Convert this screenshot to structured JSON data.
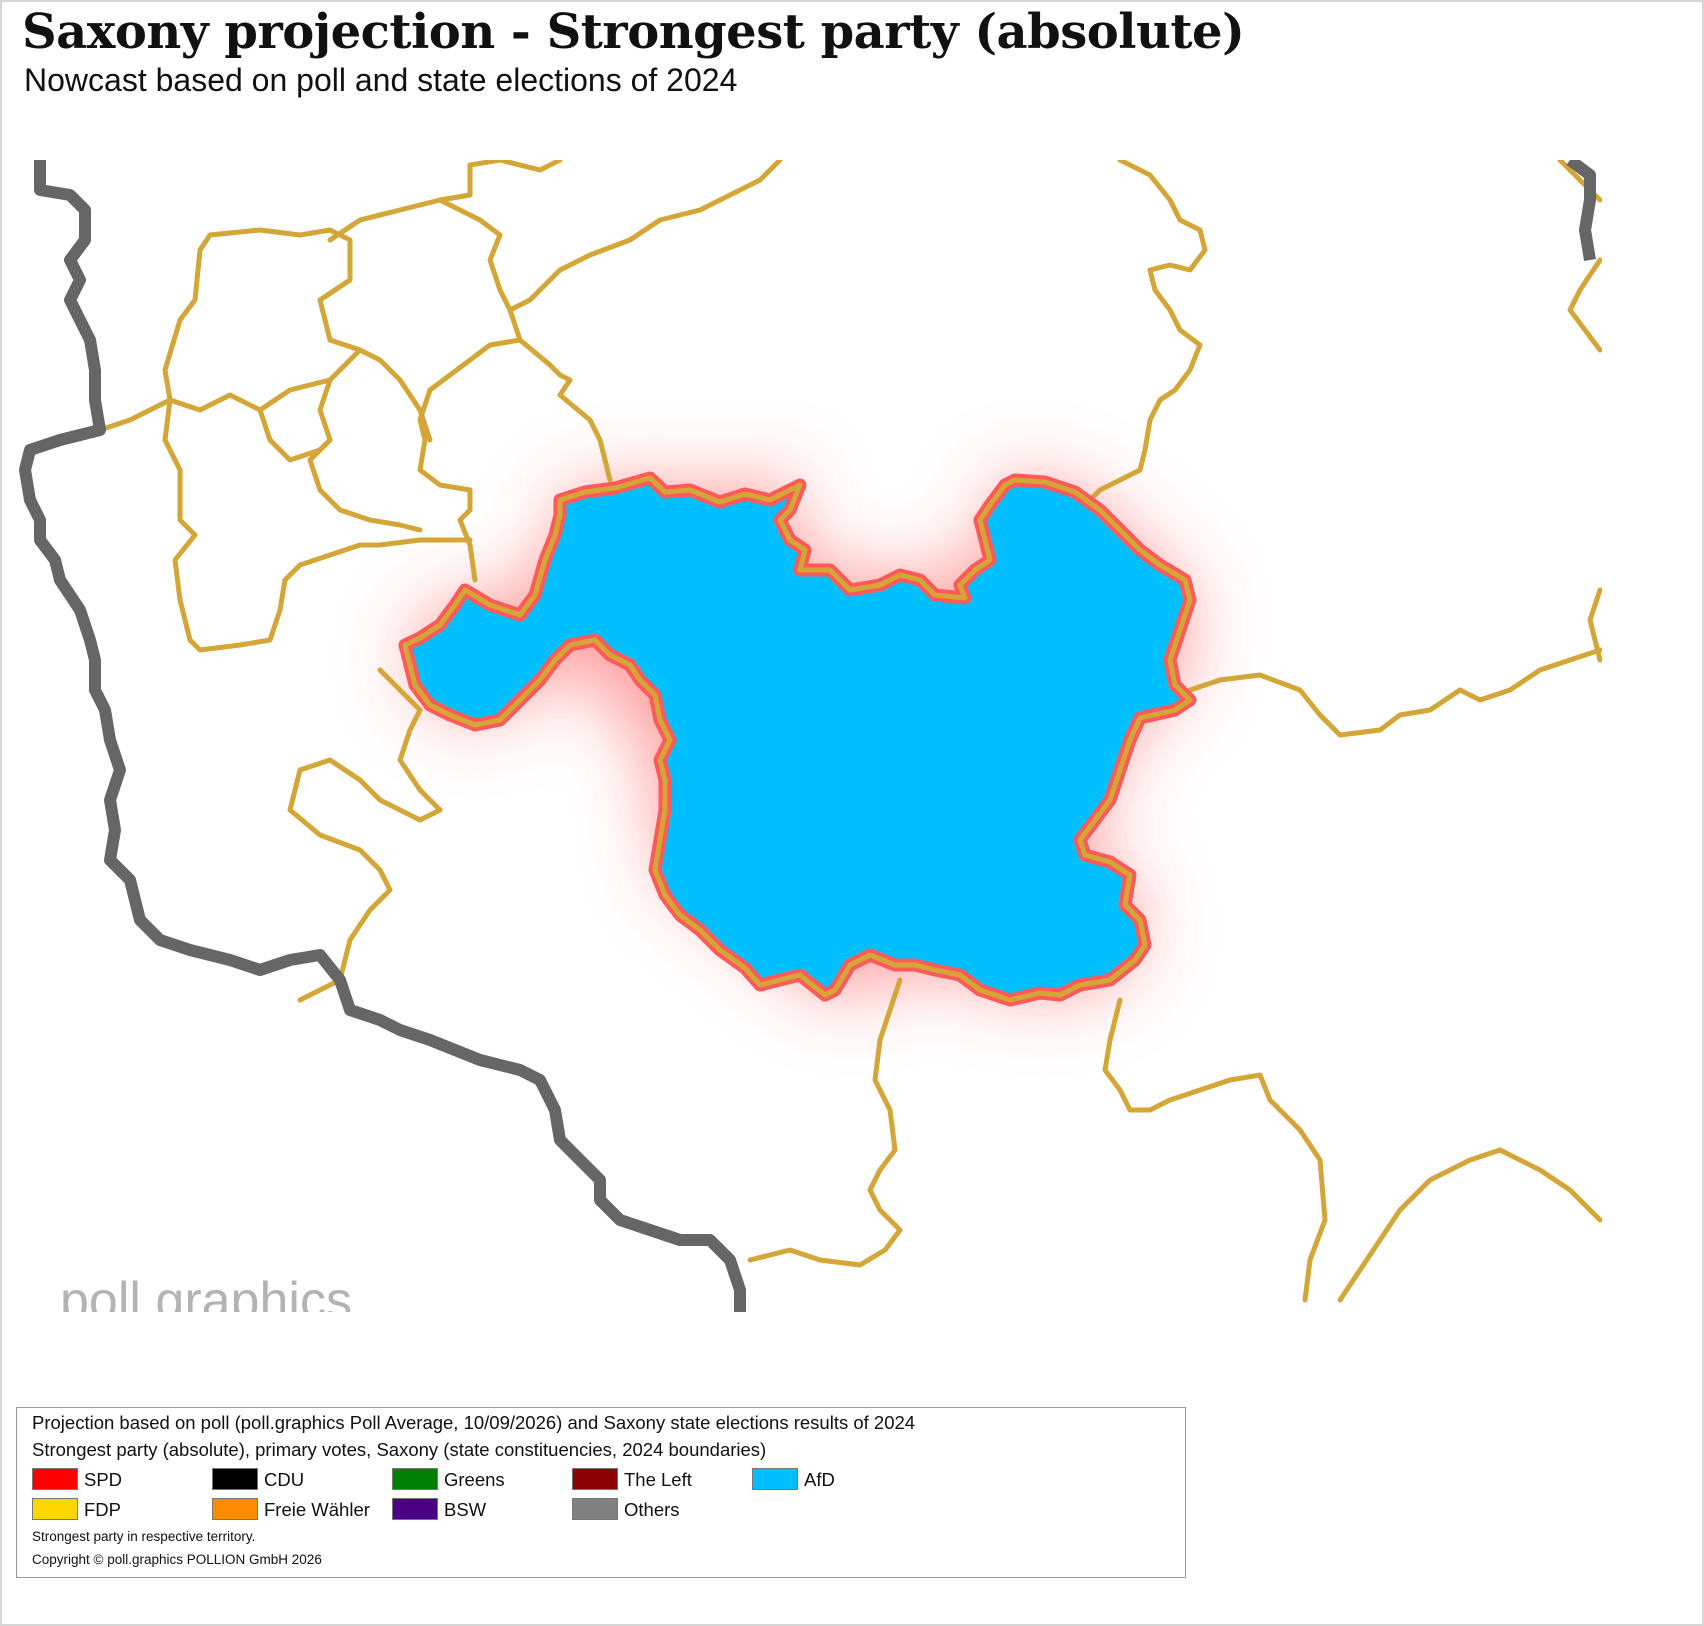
{
  "header": {
    "title": "Saxony projection - Strongest party (absolute)",
    "subtitle": "Nowcast based on poll and state elections of 2024"
  },
  "map": {
    "watermark": "poll.graphics",
    "highlighted_constituency_party": "AfD",
    "colors": {
      "highlight_fill": "#00bfff",
      "constituency_border": "#d4a537",
      "highlight_glow": "#ff5a5a",
      "state_border": "#666666"
    }
  },
  "legend": {
    "line1": "Projection based on poll (poll.graphics Poll Average, 10/09/2026) and Saxony state elections results of 2024",
    "line2": "Strongest party (absolute), primary votes, Saxony (state constituencies, 2024 boundaries)",
    "entries": [
      {
        "label": "SPD",
        "color": "#ff0000"
      },
      {
        "label": "CDU",
        "color": "#000000"
      },
      {
        "label": "Greens",
        "color": "#008000"
      },
      {
        "label": "The Left",
        "color": "#8b0000"
      },
      {
        "label": "AfD",
        "color": "#00bfff"
      },
      {
        "label": "FDP",
        "color": "#ffd700"
      },
      {
        "label": "Freie Wähler",
        "color": "#ff8c00"
      },
      {
        "label": "BSW",
        "color": "#4b0082"
      },
      {
        "label": "Others",
        "color": "#808080"
      }
    ],
    "note": "Strongest party in respective territory.",
    "copyright": "Copyright © poll.graphics POLLION GmbH 2026"
  }
}
